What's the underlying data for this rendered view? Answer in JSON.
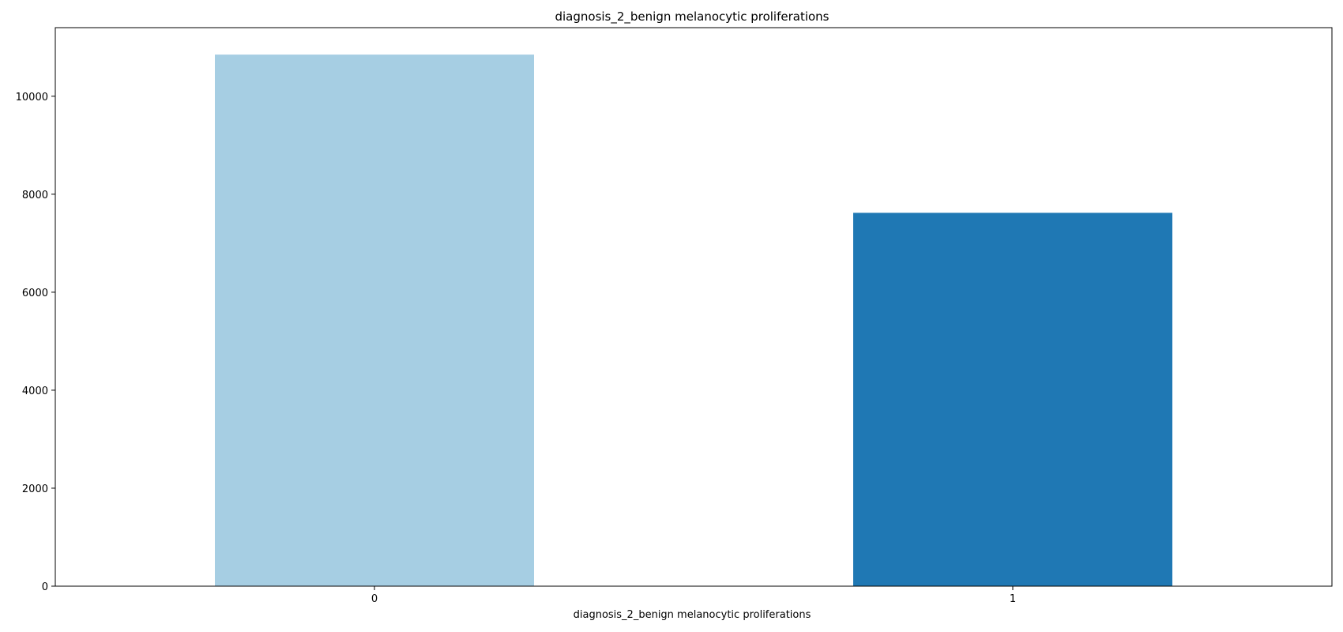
{
  "chart_data": {
    "type": "bar",
    "title": "diagnosis_2_benign melanocytic proliferations",
    "xlabel": "diagnosis_2_benign melanocytic proliferations",
    "ylabel": "",
    "categories": [
      "0",
      "1"
    ],
    "values": [
      10850,
      7620
    ],
    "colors": [
      "#a6cee3",
      "#1f78b4"
    ],
    "ylim": [
      0,
      11400
    ],
    "yticks": [
      0,
      2000,
      4000,
      6000,
      8000,
      10000
    ],
    "grid": false,
    "legend": "none"
  }
}
